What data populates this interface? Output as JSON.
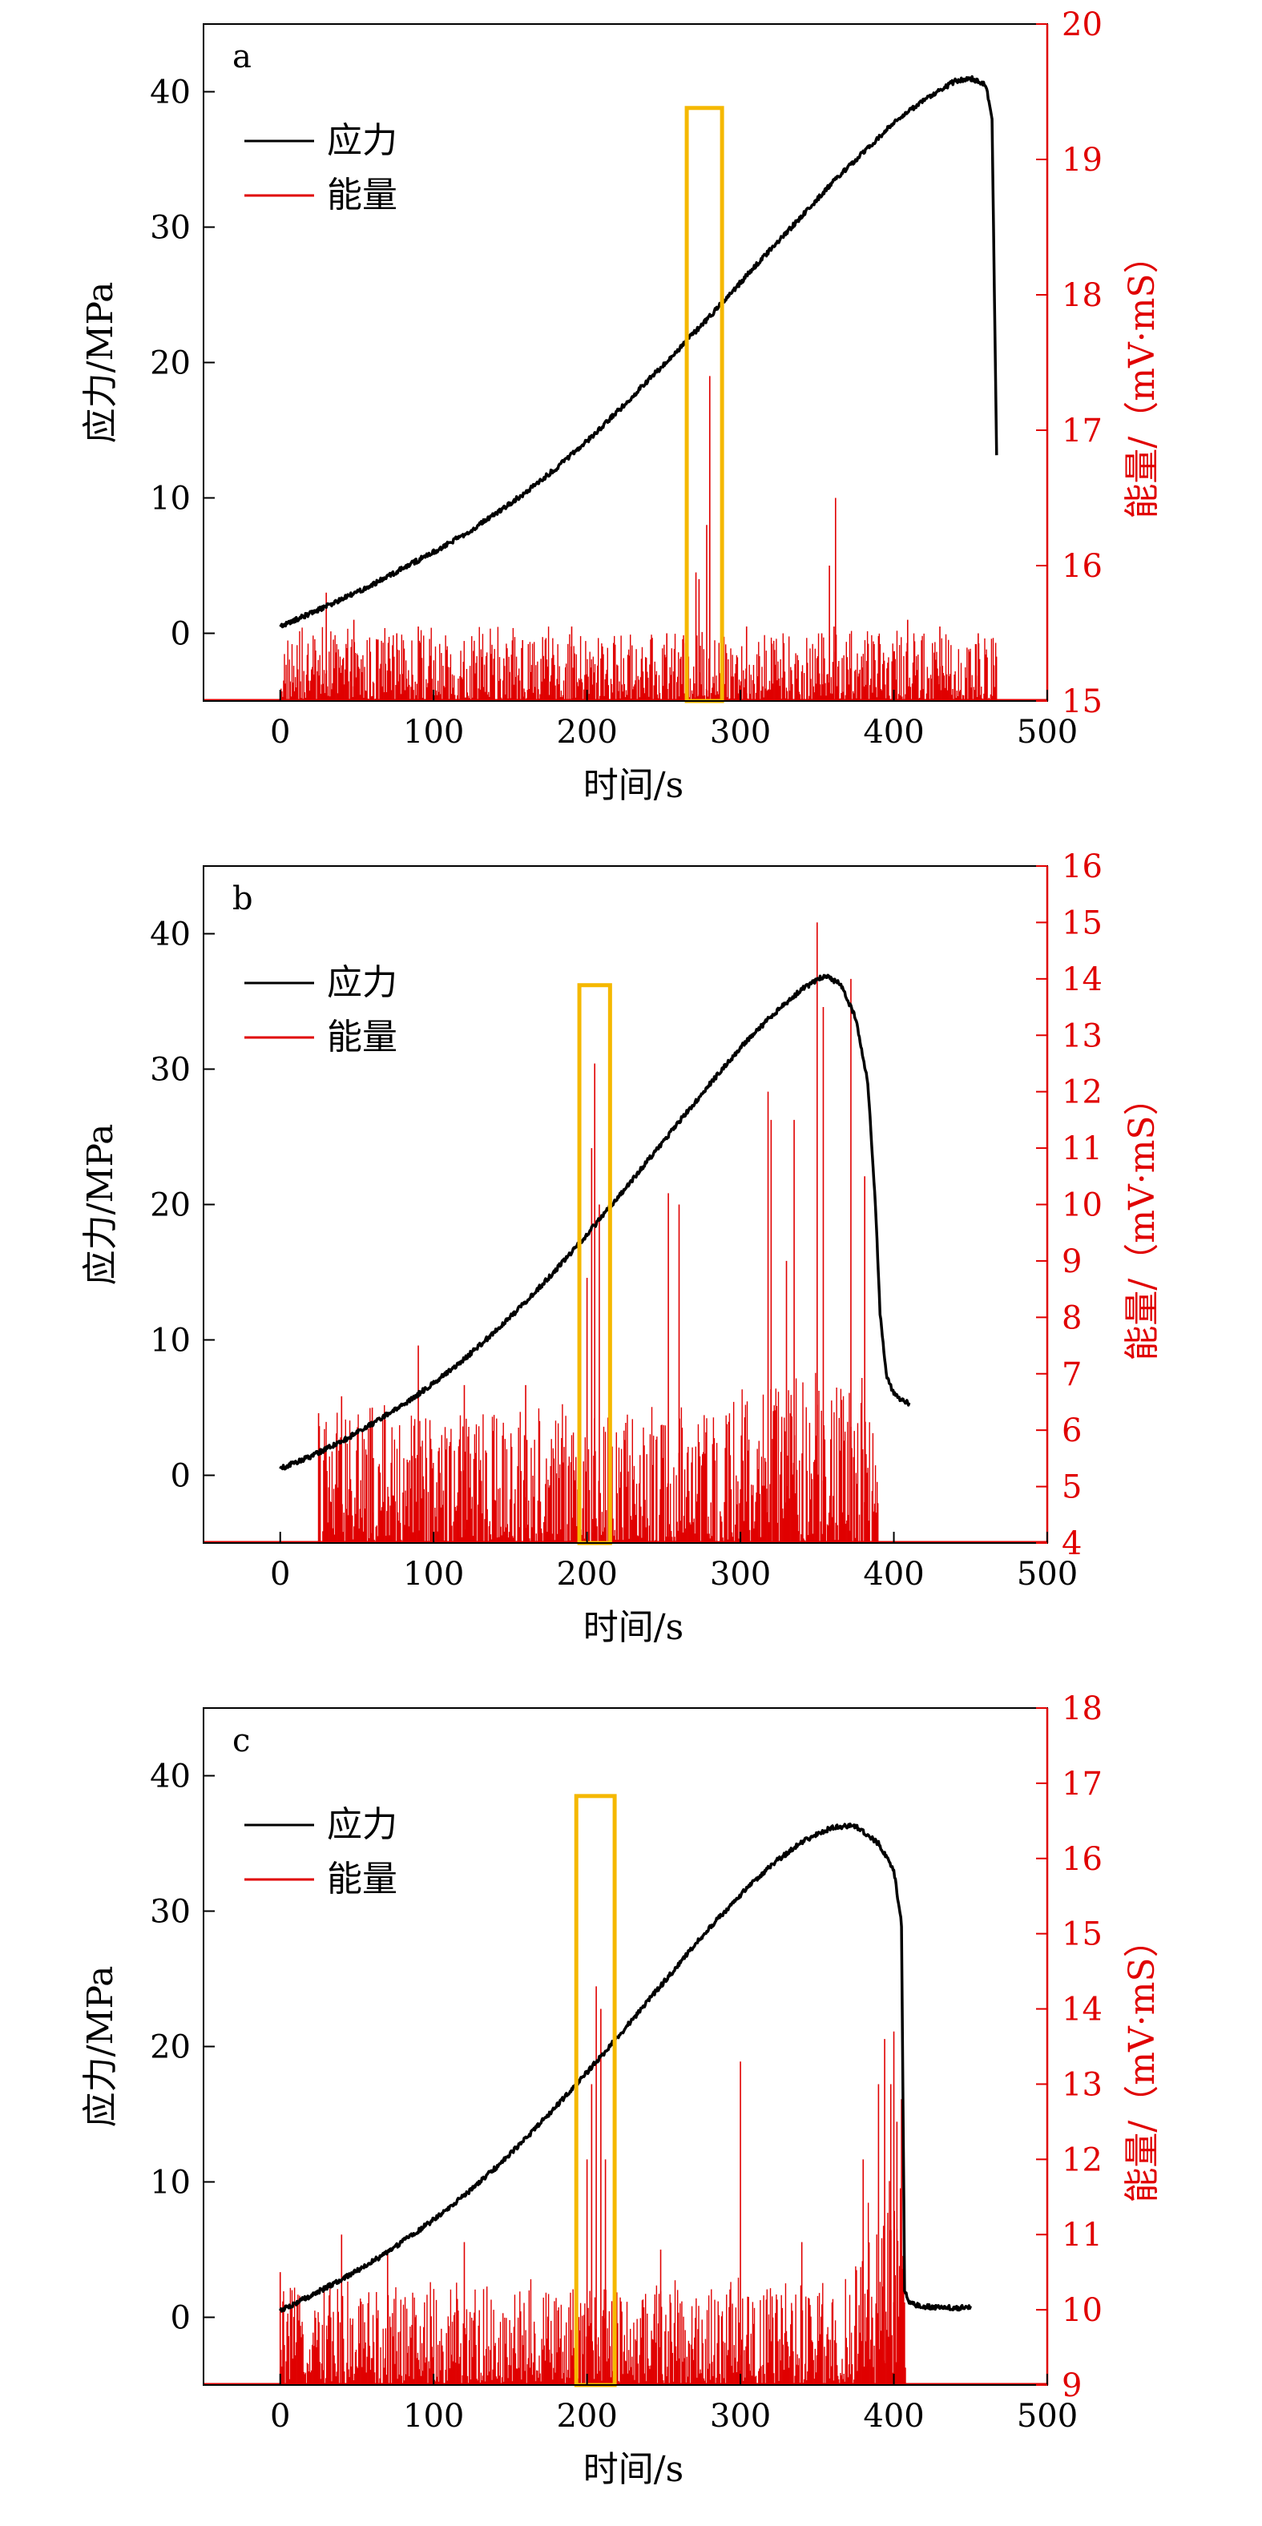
{
  "colors": {
    "stress": "#000000",
    "energy": "#e00000",
    "highlight_box": "#f5b800",
    "axis": "#000000",
    "right_axis": "#e00000"
  },
  "legend": {
    "stress_label": "应力",
    "energy_label": "能量"
  },
  "chart_data": [
    {
      "type": "line",
      "panel_label": "a",
      "xlabel": "时间/s",
      "ylabel_left": "应力/MPa",
      "ylabel_right": "能量/（mV·mS）",
      "xlim": [
        -50,
        500
      ],
      "ylim_left": [
        -5,
        45
      ],
      "ylim_right": [
        15,
        20
      ],
      "xticks": [
        0,
        100,
        200,
        300,
        400,
        500
      ],
      "yticks_left": [
        0,
        10,
        20,
        30,
        40
      ],
      "yticks_right": [
        15,
        16,
        17,
        18,
        19,
        20
      ],
      "legend_placement": "upper-left",
      "series": [
        {
          "name": "应力",
          "axis": "left",
          "x": [
            0,
            20,
            40,
            60,
            80,
            100,
            120,
            140,
            160,
            180,
            200,
            220,
            240,
            260,
            280,
            300,
            320,
            340,
            360,
            380,
            400,
            420,
            440,
            450,
            460,
            464,
            467
          ],
          "y": [
            0.5,
            1.5,
            2.5,
            3.6,
            4.8,
            6.0,
            7.3,
            8.8,
            10.4,
            12.2,
            14.2,
            16.4,
            18.7,
            21.0,
            23.4,
            25.9,
            28.4,
            30.8,
            33.3,
            35.5,
            37.7,
            39.4,
            40.8,
            41.0,
            40.5,
            38.0,
            13.0
          ]
        },
        {
          "name": "能量",
          "axis": "right",
          "type": "bar",
          "x_range": [
            0,
            467
          ],
          "baseline": 15,
          "typical_max": 15.5,
          "spikes": [
            {
              "x": 30,
              "y": 15.8
            },
            {
              "x": 48,
              "y": 15.6
            },
            {
              "x": 76,
              "y": 15.5
            },
            {
              "x": 90,
              "y": 15.55
            },
            {
              "x": 158,
              "y": 15.45
            },
            {
              "x": 190,
              "y": 15.55
            },
            {
              "x": 252,
              "y": 15.5
            },
            {
              "x": 271,
              "y": 15.95
            },
            {
              "x": 273,
              "y": 15.9
            },
            {
              "x": 278,
              "y": 16.3
            },
            {
              "x": 280,
              "y": 17.4
            },
            {
              "x": 304,
              "y": 15.55
            },
            {
              "x": 353,
              "y": 15.5
            },
            {
              "x": 358,
              "y": 16.0
            },
            {
              "x": 361,
              "y": 15.55
            },
            {
              "x": 362,
              "y": 16.5
            },
            {
              "x": 409,
              "y": 15.6
            },
            {
              "x": 430,
              "y": 15.55
            },
            {
              "x": 455,
              "y": 15.5
            }
          ]
        }
      ],
      "highlight_x": [
        265,
        288
      ]
    },
    {
      "type": "line",
      "panel_label": "b",
      "xlabel": "时间/s",
      "ylabel_left": "应力/MPa",
      "ylabel_right": "能量/（mV·mS）",
      "xlim": [
        -50,
        500
      ],
      "ylim_left": [
        -5,
        45
      ],
      "ylim_right": [
        4,
        16
      ],
      "xticks": [
        0,
        100,
        200,
        300,
        400,
        500
      ],
      "yticks_left": [
        0,
        10,
        20,
        30,
        40
      ],
      "yticks_right": [
        4,
        5,
        6,
        7,
        8,
        9,
        10,
        11,
        12,
        13,
        14,
        15,
        16
      ],
      "legend_placement": "upper-left",
      "series": [
        {
          "name": "应力",
          "axis": "left",
          "x": [
            0,
            20,
            40,
            60,
            80,
            100,
            120,
            140,
            160,
            180,
            200,
            220,
            240,
            260,
            280,
            300,
            320,
            340,
            355,
            365,
            375,
            383,
            388,
            391,
            395,
            400,
            405,
            410
          ],
          "y": [
            0.5,
            1.4,
            2.5,
            3.8,
            5.2,
            6.8,
            8.6,
            10.6,
            12.8,
            15.2,
            17.8,
            20.5,
            23.3,
            26.1,
            28.9,
            31.6,
            33.9,
            35.9,
            36.9,
            36.3,
            33.8,
            29.0,
            20.0,
            12.0,
            7.5,
            6.0,
            5.6,
            5.3
          ]
        },
        {
          "name": "能量",
          "axis": "right",
          "type": "bar",
          "x_range": [
            25,
            390
          ],
          "baseline": 4,
          "typical_max": 6.3,
          "spikes": [
            {
              "x": 25,
              "y": 6.3
            },
            {
              "x": 40,
              "y": 6.6
            },
            {
              "x": 60,
              "y": 6.4
            },
            {
              "x": 90,
              "y": 7.5
            },
            {
              "x": 120,
              "y": 6.8
            },
            {
              "x": 160,
              "y": 6.8
            },
            {
              "x": 200,
              "y": 8.7
            },
            {
              "x": 203,
              "y": 11.0
            },
            {
              "x": 205,
              "y": 12.5
            },
            {
              "x": 208,
              "y": 10.0
            },
            {
              "x": 253,
              "y": 10.2
            },
            {
              "x": 260,
              "y": 10.0
            },
            {
              "x": 318,
              "y": 12.0
            },
            {
              "x": 320,
              "y": 11.5
            },
            {
              "x": 330,
              "y": 9.0
            },
            {
              "x": 335,
              "y": 11.5
            },
            {
              "x": 350,
              "y": 15.0
            },
            {
              "x": 354,
              "y": 13.5
            },
            {
              "x": 372,
              "y": 14.0
            },
            {
              "x": 381,
              "y": 10.5
            }
          ]
        }
      ],
      "highlight_x": [
        195,
        215
      ]
    },
    {
      "type": "line",
      "panel_label": "c",
      "xlabel": "时间/s",
      "ylabel_left": "应力/MPa",
      "ylabel_right": "能量/（mV·mS）",
      "xlim": [
        -50,
        500
      ],
      "ylim_left": [
        -5,
        45
      ],
      "ylim_right": [
        9,
        18
      ],
      "xticks": [
        0,
        100,
        200,
        300,
        400,
        500
      ],
      "yticks_left": [
        0,
        10,
        20,
        30,
        40
      ],
      "yticks_right": [
        9,
        10,
        11,
        12,
        13,
        14,
        15,
        16,
        17,
        18
      ],
      "legend_placement": "upper-left",
      "series": [
        {
          "name": "应力",
          "axis": "left",
          "x": [
            0,
            20,
            40,
            60,
            80,
            100,
            120,
            140,
            160,
            180,
            200,
            220,
            240,
            260,
            280,
            300,
            320,
            340,
            360,
            375,
            390,
            400,
            405,
            407,
            410,
            420,
            430,
            440,
            450
          ],
          "y": [
            0.5,
            1.6,
            2.8,
            4.1,
            5.6,
            7.2,
            9.0,
            11.0,
            13.2,
            15.6,
            18.1,
            20.7,
            23.4,
            26.1,
            28.8,
            31.2,
            33.4,
            35.1,
            36.2,
            36.3,
            35.0,
            33.0,
            29.0,
            2.0,
            1.0,
            0.8,
            0.7,
            0.7,
            0.7
          ]
        },
        {
          "name": "能量",
          "axis": "right",
          "type": "bar",
          "x_range": [
            0,
            408
          ],
          "baseline": 9,
          "typical_max": 10.3,
          "spikes": [
            {
              "x": 0,
              "y": 10.5
            },
            {
              "x": 40,
              "y": 11.0
            },
            {
              "x": 70,
              "y": 10.8
            },
            {
              "x": 120,
              "y": 10.9
            },
            {
              "x": 200,
              "y": 12.0
            },
            {
              "x": 203,
              "y": 13.0
            },
            {
              "x": 206,
              "y": 14.3
            },
            {
              "x": 209,
              "y": 14.0
            },
            {
              "x": 212,
              "y": 12.0
            },
            {
              "x": 248,
              "y": 10.8
            },
            {
              "x": 300,
              "y": 13.3
            },
            {
              "x": 340,
              "y": 10.9
            },
            {
              "x": 380,
              "y": 12.0
            },
            {
              "x": 390,
              "y": 13.0
            },
            {
              "x": 394,
              "y": 13.6
            },
            {
              "x": 398,
              "y": 13.0
            },
            {
              "x": 400,
              "y": 13.7
            },
            {
              "x": 402,
              "y": 12.5
            },
            {
              "x": 405,
              "y": 12.8
            }
          ]
        }
      ],
      "highlight_x": [
        193,
        218
      ]
    }
  ]
}
